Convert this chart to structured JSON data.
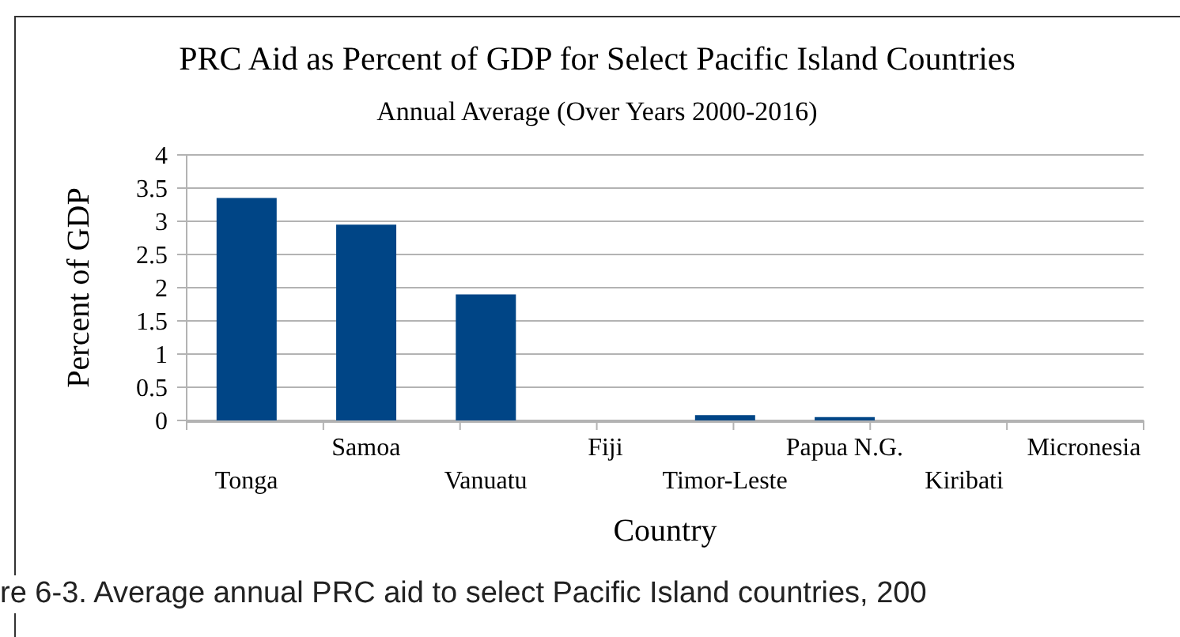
{
  "chart_data": {
    "type": "bar",
    "title": "PRC Aid as Percent of GDP for Select Pacific Island Countries",
    "subtitle": "Annual Average (Over Years 2000-2016)",
    "xlabel": "Country",
    "ylabel": "Percent of GDP",
    "annotations": [
      "re 6-3. Average annual PRC aid to select Pacific Island countries, 200"
    ],
    "categories": [
      "Tonga",
      "Samoa",
      "Vanuatu",
      "Fiji",
      "Timor-Leste",
      "Papua N.G.",
      "Kiribati",
      "Micronesia"
    ],
    "values": [
      3.35,
      2.95,
      1.9,
      null,
      0.08,
      0.05,
      0,
      0
    ],
    "color": "#004586",
    "ylim": [
      0,
      4
    ],
    "yticks": [
      0,
      0.5,
      1,
      1.5,
      2,
      2.5,
      3,
      3.5,
      4
    ],
    "grid": "y"
  }
}
